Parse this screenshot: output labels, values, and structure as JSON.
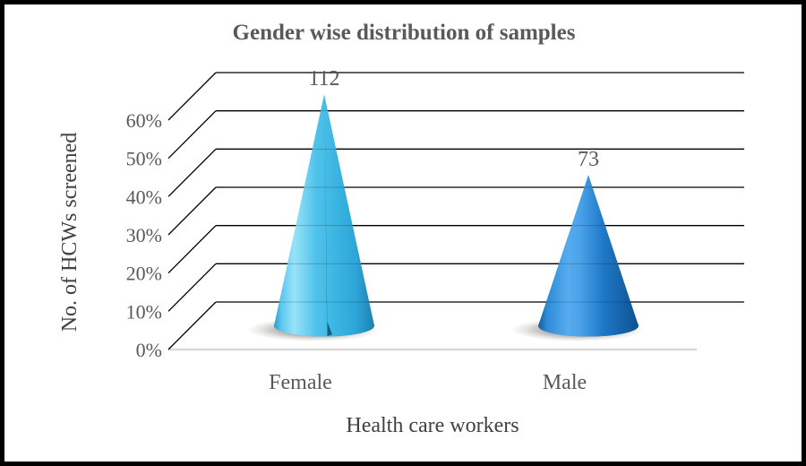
{
  "window": {
    "background": "#ffffff",
    "border_color": "#000000"
  },
  "chart_data": {
    "type": "bar",
    "variant": "3d-cone",
    "title": "Gender wise distribution of samples",
    "categories": [
      "Female",
      "Male"
    ],
    "values": [
      112,
      73
    ],
    "data_labels": [
      "112",
      "73"
    ],
    "xlabel": "Health care workers",
    "ylabel": "No. of HCWs screened",
    "y_ticks": [
      "0%",
      "10%",
      "20%",
      "30%",
      "40%",
      "50%",
      "60%"
    ],
    "ylim_pct": [
      0,
      60
    ],
    "percent_of_total": true,
    "grid": true,
    "legend": "none",
    "colors": {
      "text": "#595959",
      "axis_title_text": "#404040",
      "gridline": "#000000",
      "baseline": "#d9d9d9",
      "shadow_stops": [
        [
          0,
          "rgba(70,60,52,0.60)"
        ],
        [
          0.55,
          "rgba(70,60,52,0.35)"
        ],
        [
          0.8,
          "rgba(70,60,52,0.12)"
        ],
        [
          1,
          "rgba(70,60,52,0)"
        ]
      ]
    },
    "cone_styles": [
      {
        "name": "cone-female",
        "rim": "#1f9fd0",
        "seam": "#14607e",
        "stops": [
          [
            0,
            "#2e9ac4"
          ],
          [
            0.07,
            "#5bc8ee"
          ],
          [
            0.2,
            "#98e3f8"
          ],
          [
            0.42,
            "#4fc2ea"
          ],
          [
            0.6,
            "#3db6e3"
          ],
          [
            0.82,
            "#2ca5d8"
          ],
          [
            1,
            "#1e80ae"
          ]
        ]
      },
      {
        "name": "cone-male",
        "rim": "#1668b0",
        "seam": null,
        "stops": [
          [
            0,
            "#11609f"
          ],
          [
            0.09,
            "#2f8cd8"
          ],
          [
            0.3,
            "#57acef"
          ],
          [
            0.42,
            "#4aa2e9"
          ],
          [
            0.65,
            "#1f78c8"
          ],
          [
            1,
            "#0e5190"
          ]
        ]
      }
    ]
  }
}
